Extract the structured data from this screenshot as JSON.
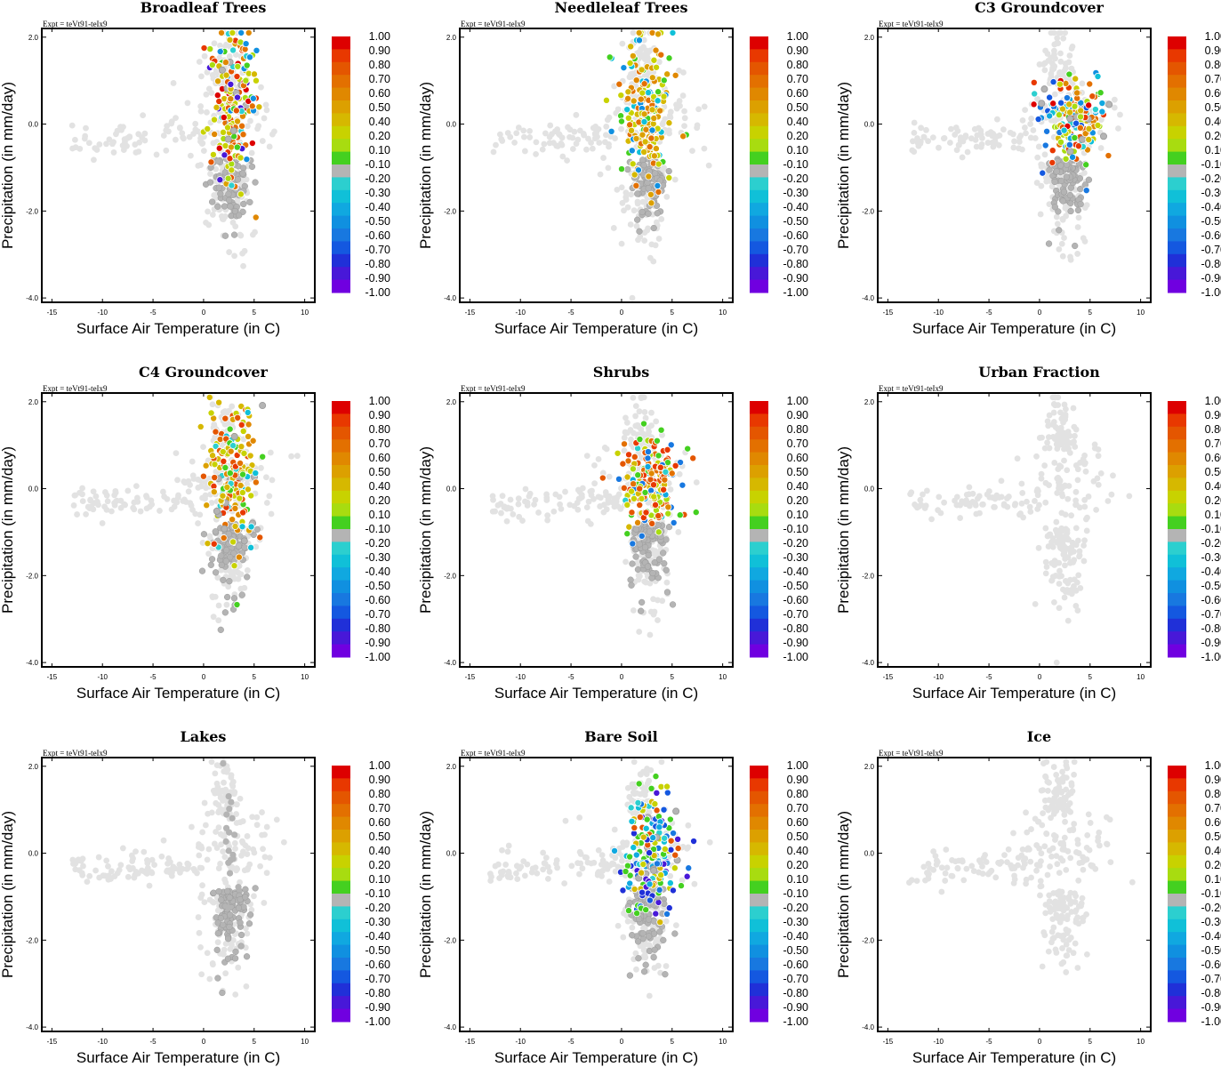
{
  "figure": {
    "xlabel": "Surface Air Temperature (in C)",
    "ylabel": "Precipitation (in mm/day)",
    "expt": "Expt = teVt91-teIx9"
  },
  "chart_data": {
    "type": "scatter",
    "xlim": [
      -16,
      11
    ],
    "ylim": [
      -4.1,
      2.2
    ],
    "x_ticks": [
      -15,
      -10,
      -5,
      0,
      5,
      10
    ],
    "y_ticks": [
      2.0,
      0.0,
      -2.0,
      -4.0
    ],
    "y_tick_labels": [
      "2.0",
      "0.0",
      "-2.0",
      "-4.0"
    ],
    "colorbar": {
      "labels": [
        "1.00",
        "0.90",
        "0.80",
        "0.70",
        "0.60",
        "0.50",
        "0.40",
        "0.20",
        "0.10",
        "-0.10",
        "-0.20",
        "-0.30",
        "-0.40",
        "-0.50",
        "-0.60",
        "-0.70",
        "-0.80",
        "-0.90",
        "-1.00"
      ],
      "colors": [
        "#dd0000",
        "#e83800",
        "#e45600",
        "#e37000",
        "#e08800",
        "#dca000",
        "#d6b800",
        "#c8d200",
        "#a8dc10",
        "#44d020",
        "#b4b4b4",
        "#2ccfcf",
        "#10c0d8",
        "#10a8e0",
        "#1090e0",
        "#1878e0",
        "#1458e0",
        "#2030d8",
        "#4818d8",
        "#7000e0"
      ]
    },
    "panels": [
      {
        "title": "Broadleaf Trees",
        "center": [
          2.8,
          0.4
        ],
        "spread": [
          1.2,
          0.9
        ],
        "mode": "warm",
        "seed": 11
      },
      {
        "title": "Needleleaf Trees",
        "center": [
          2.6,
          0.3
        ],
        "spread": [
          1.2,
          0.8
        ],
        "mode": "green-orange",
        "seed": 23
      },
      {
        "title": "C3 Groundcover",
        "center": [
          3.2,
          0.1
        ],
        "spread": [
          1.5,
          0.5
        ],
        "mode": "mixed",
        "seed": 37
      },
      {
        "title": "C4 Groundcover",
        "center": [
          2.8,
          0.3
        ],
        "spread": [
          1.3,
          0.8
        ],
        "mode": "yellow",
        "seed": 41
      },
      {
        "title": "Shrubs",
        "center": [
          3.0,
          0.1
        ],
        "spread": [
          1.4,
          0.5
        ],
        "mode": "red",
        "seed": 53
      },
      {
        "title": "Urban Fraction",
        "center": [
          2.5,
          0.0
        ],
        "spread": [
          1.0,
          0.5
        ],
        "mode": "none",
        "seed": 61
      },
      {
        "title": "Lakes",
        "center": [
          2.5,
          0.2
        ],
        "spread": [
          0.6,
          0.4
        ],
        "mode": "gray",
        "seed": 71
      },
      {
        "title": "Bare Soil",
        "center": [
          3.0,
          0.0
        ],
        "spread": [
          1.3,
          0.7
        ],
        "mode": "blue",
        "seed": 83
      },
      {
        "title": "Ice",
        "center": [
          2.5,
          0.0
        ],
        "spread": [
          1.0,
          0.5
        ],
        "mode": "none",
        "seed": 97
      }
    ]
  }
}
